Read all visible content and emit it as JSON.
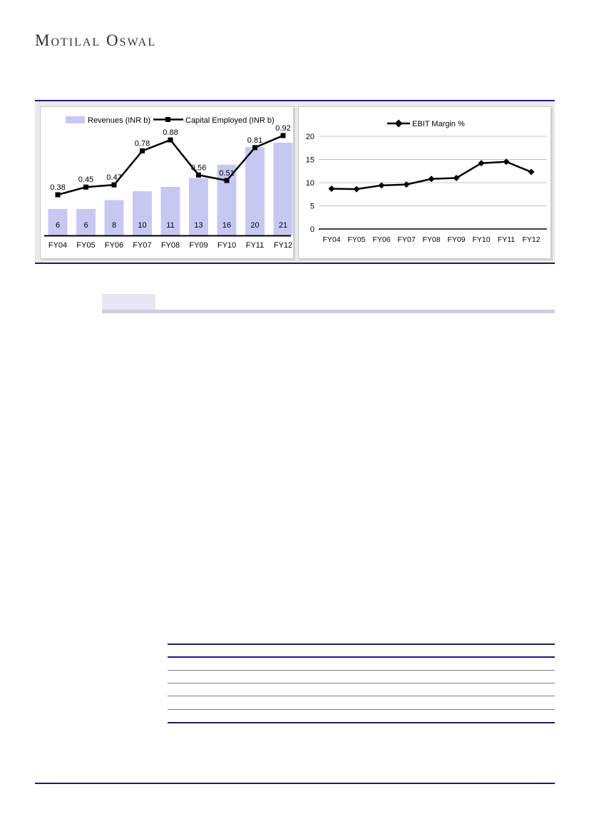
{
  "logo": {
    "text": "Motilal Oswal"
  },
  "colors": {
    "navy_rule": "#1f1b6e",
    "bar_fill": "#c7c8f2",
    "line_color": "#000000",
    "band_bg": "#eaeaea",
    "grid_line": "#c3c3c3",
    "highlight_box": "#e8e6f3",
    "highlight_bar": "#cfcce4",
    "table_gray_rule": "#808080"
  },
  "chart_data": [
    {
      "type": "bar+line",
      "title": "",
      "categories": [
        "FY04",
        "FY05",
        "FY06",
        "FY07",
        "FY08",
        "FY09",
        "FY10",
        "FY11",
        "FY12"
      ],
      "legend_position": "top",
      "series": [
        {
          "name": "Revenues (INR b)",
          "type": "bar",
          "values": [
            6,
            6,
            8,
            10,
            11,
            13,
            16,
            20,
            21
          ],
          "value_labels": [
            "6",
            "6",
            "8",
            "10",
            "11",
            "13",
            "16",
            "20",
            "21"
          ],
          "color": "#c7c8f2"
        },
        {
          "name": "Capital Employed (INR b)",
          "type": "line",
          "marker": "square",
          "values": [
            0.38,
            0.45,
            0.47,
            0.78,
            0.88,
            0.56,
            0.51,
            0.81,
            0.92
          ],
          "value_labels": [
            "0.38",
            "0.45",
            "0.47",
            "0.78",
            "0.88",
            "0.56",
            "0.51",
            "0.81",
            "0.92"
          ],
          "color": "#000000"
        }
      ]
    },
    {
      "type": "line",
      "title": "",
      "categories": [
        "FY04",
        "FY05",
        "FY06",
        "FY07",
        "FY08",
        "FY09",
        "FY10",
        "FY11",
        "FY12"
      ],
      "legend_position": "top",
      "grid": true,
      "ylim": [
        0,
        20
      ],
      "yticks": [
        0,
        5,
        10,
        15,
        20
      ],
      "ytick_labels": [
        "0",
        "5",
        "10",
        "15",
        "20"
      ],
      "series": [
        {
          "name": "EBIT Margin %",
          "type": "line",
          "marker": "diamond",
          "values": [
            8.7,
            8.6,
            9.4,
            9.6,
            10.8,
            11.0,
            14.2,
            14.5,
            12.3
          ],
          "color": "#000000"
        }
      ]
    }
  ]
}
